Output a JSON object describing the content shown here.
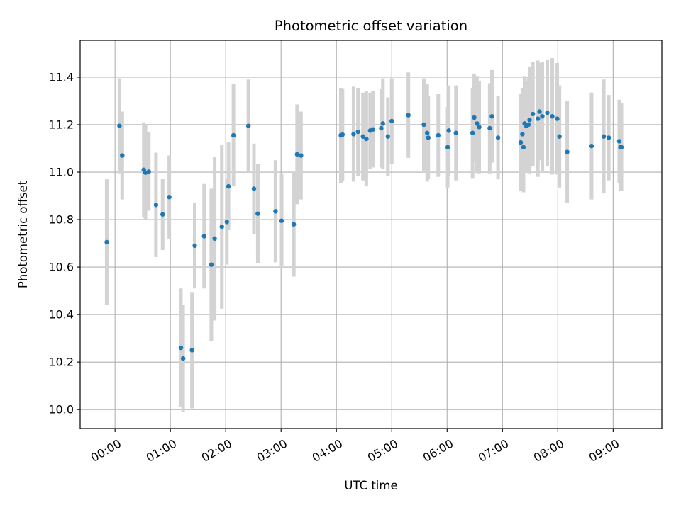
{
  "chart_data": {
    "type": "scatter",
    "title": "Photometric offset variation",
    "xlabel": "UTC time",
    "ylabel": "Photometric offset",
    "ylim": [
      9.92,
      11.555
    ],
    "xlim": [
      -0.63,
      9.88
    ],
    "x_unit": "hours UTC",
    "grid": true,
    "y_ticks": [
      10.0,
      10.2,
      10.4,
      10.6,
      10.8,
      11.0,
      11.2,
      11.4
    ],
    "y_tick_labels": [
      "10.0",
      "10.2",
      "10.4",
      "10.6",
      "10.8",
      "11.0",
      "11.2",
      "11.4"
    ],
    "x_ticks": [
      0,
      1,
      2,
      3,
      4,
      5,
      6,
      7,
      8,
      9
    ],
    "x_tick_labels": [
      "00:00",
      "01:00",
      "02:00",
      "03:00",
      "04:00",
      "05:00",
      "06:00",
      "07:00",
      "08:00",
      "09:00"
    ],
    "colors": {
      "points": "#1f77b4",
      "errorbars": "#d3d3d3",
      "grid": "#b0b0b0"
    },
    "series": [
      {
        "x": [
          -0.15,
          0.08,
          0.13,
          0.52,
          0.55,
          0.61,
          0.74,
          0.86,
          0.98,
          1.19,
          1.23,
          1.39,
          1.44,
          1.61,
          1.74,
          1.8,
          1.93,
          2.02,
          2.05,
          2.14,
          2.41,
          2.51,
          2.58,
          2.9,
          3.01,
          3.23,
          3.29,
          3.36,
          4.08,
          4.11,
          4.31,
          4.39,
          4.48,
          4.54,
          4.61,
          4.66,
          4.81,
          4.84,
          4.93,
          5.0,
          5.3,
          5.58,
          5.64,
          5.66,
          5.84,
          6.01,
          6.03,
          6.16,
          6.46,
          6.49,
          6.54,
          6.58,
          6.77,
          6.81,
          6.92,
          7.33,
          7.36,
          7.38,
          7.4,
          7.43,
          7.47,
          7.49,
          7.55,
          7.64,
          7.67,
          7.72,
          7.81,
          7.9,
          7.99,
          8.03,
          8.17,
          8.61,
          8.83,
          8.92,
          9.11,
          9.13,
          9.15
        ],
        "y": [
          10.705,
          11.195,
          11.07,
          11.01,
          10.998,
          11.002,
          10.862,
          10.822,
          10.895,
          10.26,
          10.215,
          10.25,
          10.69,
          10.73,
          10.61,
          10.72,
          10.77,
          10.79,
          10.94,
          11.155,
          11.195,
          10.93,
          10.825,
          10.835,
          10.795,
          10.78,
          11.075,
          11.07,
          11.155,
          11.158,
          11.16,
          11.17,
          11.15,
          11.14,
          11.175,
          11.18,
          11.185,
          11.205,
          11.15,
          11.215,
          11.24,
          11.2,
          11.165,
          11.145,
          11.155,
          11.105,
          11.175,
          11.165,
          11.165,
          11.23,
          11.205,
          11.19,
          11.185,
          11.235,
          11.145,
          11.125,
          11.16,
          11.105,
          11.205,
          11.195,
          11.2,
          11.22,
          11.245,
          11.225,
          11.255,
          11.235,
          11.25,
          11.235,
          11.225,
          11.15,
          11.085,
          11.11,
          11.15,
          11.145,
          11.13,
          11.105,
          11.105
        ],
        "err": [
          0.265,
          0.2,
          0.185,
          0.2,
          0.2,
          0.165,
          0.22,
          0.15,
          0.175,
          0.25,
          0.225,
          0.245,
          0.18,
          0.22,
          0.32,
          0.345,
          0.345,
          0.18,
          0.185,
          0.215,
          0.195,
          0.19,
          0.21,
          0.215,
          0.2,
          0.22,
          0.21,
          0.185,
          0.2,
          0.195,
          0.2,
          0.185,
          0.185,
          0.2,
          0.16,
          0.16,
          0.165,
          0.19,
          0.165,
          0.18,
          0.18,
          0.195,
          0.205,
          0.175,
          0.175,
          0.17,
          0.19,
          0.2,
          0.19,
          0.185,
          0.2,
          0.195,
          0.19,
          0.195,
          0.175,
          0.205,
          0.195,
          0.19,
          0.2,
          0.19,
          0.2,
          0.225,
          0.22,
          0.245,
          0.205,
          0.23,
          0.225,
          0.245,
          0.235,
          0.215,
          0.215,
          0.225,
          0.24,
          0.18,
          0.175,
          0.185,
          0.185
        ]
      }
    ]
  }
}
